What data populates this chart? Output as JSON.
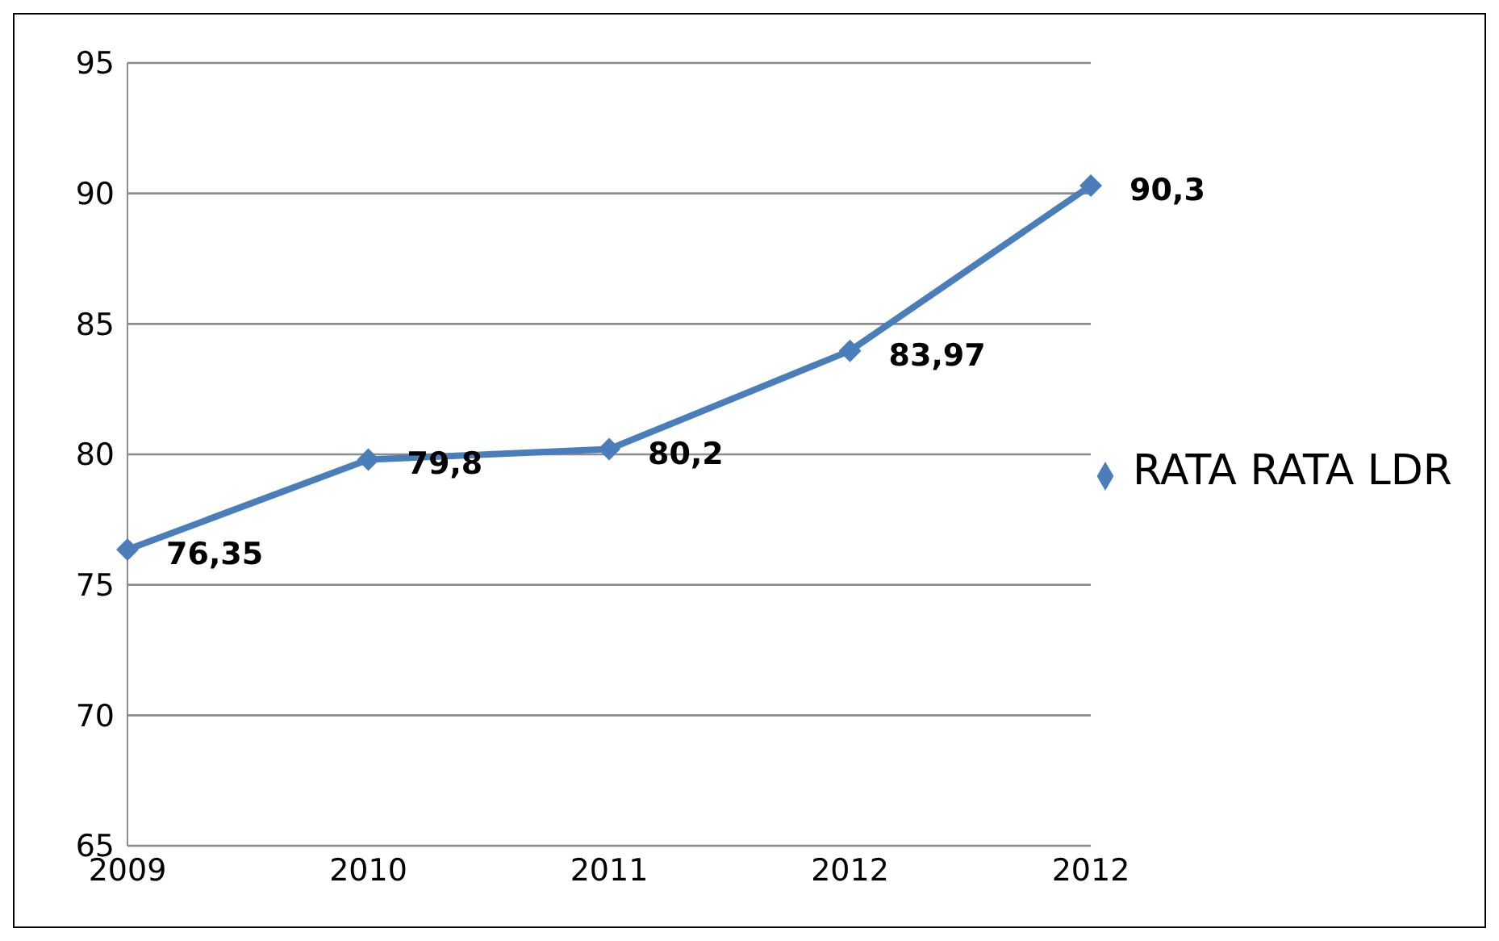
{
  "chart_data": {
    "type": "line",
    "categories": [
      "2009",
      "2010",
      "2011",
      "2012",
      "2012"
    ],
    "series": [
      {
        "name": "RATA RATA LDR",
        "color": "#4a7ebb",
        "values": [
          76.35,
          79.8,
          80.2,
          83.97,
          90.3
        ],
        "value_labels": [
          "76,35",
          "79,8",
          "80,2",
          "83,97",
          "90,3"
        ]
      }
    ],
    "ylim": [
      65,
      95
    ],
    "yticks": [
      65,
      70,
      75,
      80,
      85,
      90,
      95
    ],
    "grid": "y",
    "legend": "right",
    "marker": "diamond",
    "line_style": "solid"
  }
}
